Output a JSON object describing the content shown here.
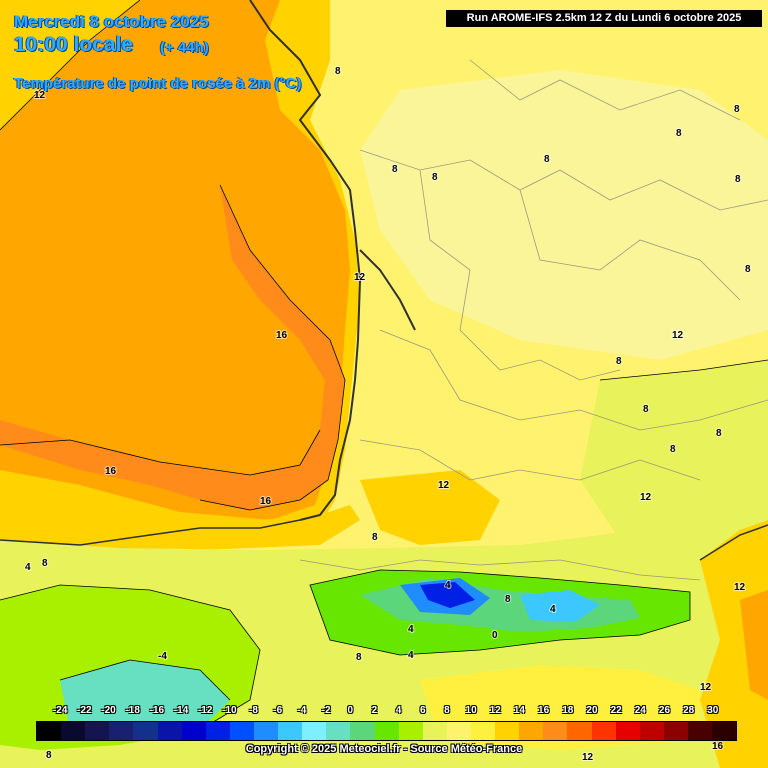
{
  "header": {
    "date": "Mercredi 8 octobre 2025",
    "local_time": "10:00 locale",
    "lead": "(+ 44h)",
    "parameter": "Température de point de rosée à 2m (°C)",
    "run": "Run AROME-IFS 2.5km 12 Z du Lundi 6 octobre 2025"
  },
  "legend": {
    "ticks": [
      "-24",
      "-22",
      "-20",
      "-18",
      "-16",
      "-14",
      "-12",
      "-10",
      "-8",
      "-6",
      "-4",
      "-2",
      "0",
      "2",
      "4",
      "6",
      "8",
      "10",
      "12",
      "14",
      "16",
      "18",
      "20",
      "22",
      "24",
      "26",
      "28",
      "30"
    ],
    "colors": [
      "#000000",
      "#0a0a30",
      "#141450",
      "#1a2070",
      "#15308a",
      "#0a14a8",
      "#0000cc",
      "#0020e6",
      "#0050ff",
      "#1f8cff",
      "#3cc8ff",
      "#7cf0ff",
      "#66e0c0",
      "#5cd67a",
      "#66e600",
      "#a8f000",
      "#e8f25a",
      "#fff26e",
      "#fff040",
      "#ffd200",
      "#ffa600",
      "#ff8c1a",
      "#ff6600",
      "#ff3300",
      "#e60000",
      "#c00000",
      "#8c0000",
      "#4a0000",
      "#2a0000"
    ],
    "colors_note": ""
  },
  "contour_labels": [
    "12",
    "8",
    "8",
    "8",
    "8",
    "8",
    "8",
    "8",
    "12",
    "16",
    "16",
    "16",
    "12",
    "8",
    "8",
    "4",
    "8",
    "8",
    "4",
    "8",
    "12",
    "4",
    "0",
    "4",
    "8",
    "-4",
    "4",
    "12",
    "12",
    "8",
    "12",
    "16",
    "8",
    "12",
    "8",
    "8"
  ],
  "copyright": "Copyright © 2025 Meteociel.fr - Source Météo-France"
}
